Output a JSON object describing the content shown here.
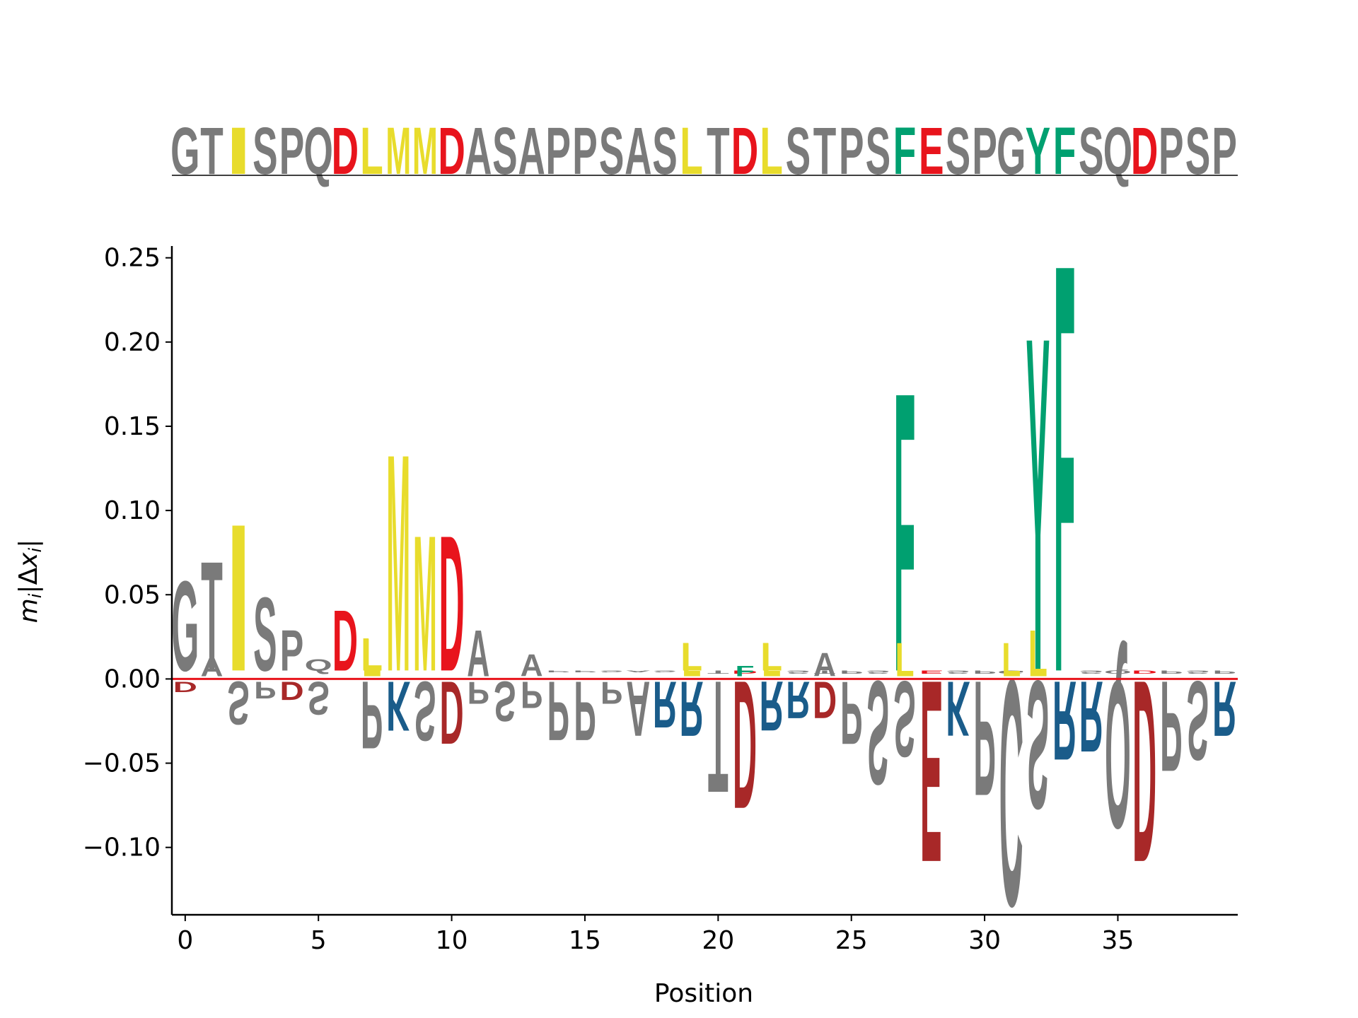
{
  "chart_data": {
    "type": "sequence-logo",
    "xlabel": "Position",
    "ylabel": "m_i|Δx_i|",
    "ylim": [
      -0.14,
      0.257
    ],
    "xlim": [
      -0.5,
      39.5
    ],
    "x_ticks": [
      0,
      5,
      10,
      15,
      20,
      25,
      30,
      35
    ],
    "x_tick_labels": [
      "0",
      "5",
      "10",
      "15",
      "20",
      "25",
      "30",
      "35"
    ],
    "y_ticks": [
      -0.1,
      -0.05,
      0.0,
      0.05,
      0.1,
      0.15,
      0.2,
      0.25
    ],
    "y_tick_labels": [
      "−0.10",
      "−0.05",
      "0.00",
      "0.05",
      "0.10",
      "0.15",
      "0.20",
      "0.25"
    ],
    "baseline_color": "#e8141c",
    "sequence": "GTISPQDLMMDASAPPSASLTDLSTPSFESPGYFSQDPSP",
    "colors": {
      "hydrophobic": "#e8dc2c",
      "aromatic": "#00a070",
      "acidic_top": "#e8141c",
      "acidic": "#a82828",
      "basic": "#1a5c8a",
      "other": "#7a7a7a"
    },
    "residue_heights": [
      0.06,
      0.072,
      0.095,
      0.05,
      0.03,
      0.012,
      0.042,
      0.025,
      0.138,
      0.088,
      0.088,
      0.005,
      0.005,
      0.005,
      0.004,
      0.004,
      0.004,
      0.004,
      0.004,
      0.022,
      0.003,
      0.003,
      0.022,
      0.003,
      0.003,
      0.003,
      0.003,
      0.176,
      0.003,
      0.003,
      0.003,
      0.003,
      0.21,
      0.255,
      0.003,
      0.003,
      0.003,
      0.003,
      0.003,
      0.003
    ],
    "positive_stacks": [
      {
        "x": 1,
        "letter": "A",
        "value": 0.013
      },
      {
        "x": 7,
        "letter": "L",
        "value": 0.025
      },
      {
        "x": 11,
        "letter": "A",
        "value": 0.03
      },
      {
        "x": 13,
        "letter": "A",
        "value": 0.015
      },
      {
        "x": 19,
        "letter": "L",
        "value": 0.022
      },
      {
        "x": 21,
        "letter": "F",
        "value": 0.008
      },
      {
        "x": 22,
        "letter": "L",
        "value": 0.022
      },
      {
        "x": 24,
        "letter": "A",
        "value": 0.016
      },
      {
        "x": 27,
        "letter": "L",
        "value": 0.022
      },
      {
        "x": 31,
        "letter": "L",
        "value": 0.022
      },
      {
        "x": 32,
        "letter": "L",
        "value": 0.03
      }
    ],
    "negative_stacks": [
      {
        "x": 0,
        "letter": "D",
        "value": -0.008
      },
      {
        "x": 2,
        "letter": "S",
        "value": -0.028
      },
      {
        "x": 3,
        "letter": "P",
        "value": -0.012
      },
      {
        "x": 4,
        "letter": "D",
        "value": -0.013
      },
      {
        "x": 5,
        "letter": "S",
        "value": -0.022
      },
      {
        "x": 7,
        "letter": "P",
        "value": -0.043
      },
      {
        "x": 8,
        "letter": "K",
        "value": -0.032
      },
      {
        "x": 9,
        "letter": "S",
        "value": -0.038
      },
      {
        "x": 10,
        "letter": "D",
        "value": -0.04
      },
      {
        "x": 11,
        "letter": "P",
        "value": -0.015
      },
      {
        "x": 12,
        "letter": "S",
        "value": -0.026
      },
      {
        "x": 13,
        "letter": "P",
        "value": -0.018
      },
      {
        "x": 14,
        "letter": "P",
        "value": -0.038
      },
      {
        "x": 15,
        "letter": "P",
        "value": -0.038
      },
      {
        "x": 16,
        "letter": "P",
        "value": -0.015
      },
      {
        "x": 17,
        "letter": "A",
        "value": -0.035
      },
      {
        "x": 18,
        "letter": "R",
        "value": -0.03
      },
      {
        "x": 19,
        "letter": "R",
        "value": -0.035
      },
      {
        "x": 20,
        "letter": "T",
        "value": -0.07
      },
      {
        "x": 21,
        "letter": "D",
        "value": -0.08
      },
      {
        "x": 22,
        "letter": "R",
        "value": -0.032
      },
      {
        "x": 23,
        "letter": "R",
        "value": -0.024
      },
      {
        "x": 24,
        "letter": "D",
        "value": -0.024
      },
      {
        "x": 25,
        "letter": "P",
        "value": -0.04
      },
      {
        "x": 26,
        "letter": "S",
        "value": -0.065
      },
      {
        "x": 27,
        "letter": "S",
        "value": -0.048
      },
      {
        "x": 28,
        "letter": "E",
        "value": -0.113
      },
      {
        "x": 29,
        "letter": "K",
        "value": -0.035
      },
      {
        "x": 30,
        "letter": "P",
        "value": -0.072
      },
      {
        "x": 31,
        "letter": "C",
        "value": -0.14
      },
      {
        "x": 32,
        "letter": "S",
        "value": -0.08
      },
      {
        "x": 33,
        "letter": "R",
        "value": -0.05
      },
      {
        "x": 34,
        "letter": "R",
        "value": -0.045
      },
      {
        "x": 35,
        "letter": "Q",
        "value": -0.092
      },
      {
        "x": 36,
        "letter": "D",
        "value": -0.113
      },
      {
        "x": 37,
        "letter": "P",
        "value": -0.057
      },
      {
        "x": 38,
        "letter": "S",
        "value": -0.05
      },
      {
        "x": 39,
        "letter": "R",
        "value": -0.035
      }
    ]
  }
}
